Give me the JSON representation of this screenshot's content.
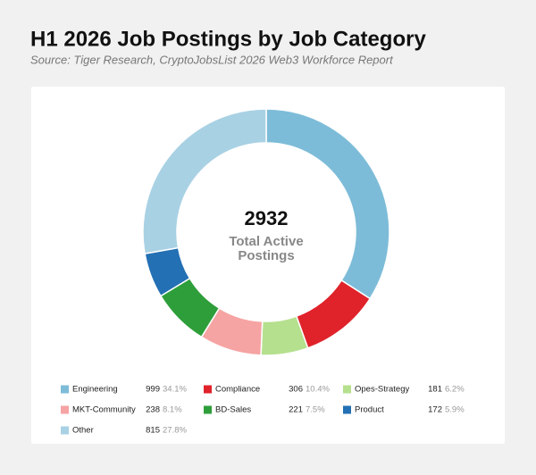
{
  "chart_data": {
    "type": "donut",
    "title": "H1 2026 Job Postings by Job Category",
    "subtitle": "Source: Tiger Research, CryptoJobsList 2026 Web3 Workforce Report",
    "total": 2932,
    "center_label": [
      "Total Active",
      "Postings"
    ],
    "categories": [
      "Engineering",
      "Compliance",
      "Opes-Strategy",
      "MKT-Community",
      "BD-Sales",
      "Product",
      "Other"
    ],
    "values": [
      999,
      306,
      181,
      238,
      221,
      172,
      815
    ],
    "share_labels": [
      "34.1%",
      "10.4%",
      "6.2%",
      "8.1%",
      "7.5%",
      "5.9%",
      "27.8%"
    ],
    "colors": [
      "#7dbcd8",
      "#e0222a",
      "#b5e08e",
      "#f6a3a3",
      "#2e9e3a",
      "#2370b4",
      "#a9d1e4"
    ]
  }
}
